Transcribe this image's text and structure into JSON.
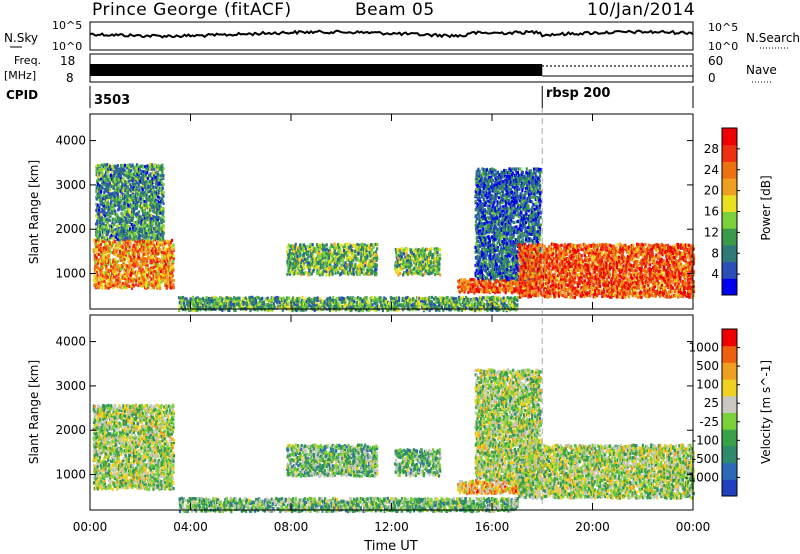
{
  "header": {
    "station": "Prince George (fitACF)",
    "beam": "Beam 05",
    "date": "10/Jan/2014"
  },
  "noise_panel": {
    "left_label": "N.Sky",
    "right_label": "N.Search",
    "left_ticks": [
      "10^5",
      "10^0"
    ],
    "right_ticks": [
      "10^5",
      "10^0"
    ]
  },
  "freq_panel": {
    "left_label_1": "Freq.",
    "left_label_2": "[MHz]",
    "left_ticks": [
      "18",
      "8"
    ],
    "right_label": "Nave",
    "right_ticks": [
      "60",
      "0"
    ]
  },
  "cpid_panel": {
    "label": "CPID",
    "segments": [
      {
        "start_h": 0,
        "end_h": 18.0,
        "name": "3503"
      },
      {
        "start_h": 18.0,
        "end_h": 24,
        "name": "rbsp 200"
      }
    ]
  },
  "x_axis": {
    "label": "Time UT",
    "ticks": [
      "00:00",
      "04:00",
      "08:00",
      "12:00",
      "16:00",
      "20:00",
      "00:00"
    ],
    "tick_hours": [
      0,
      4,
      8,
      12,
      16,
      20,
      24
    ],
    "range_h": [
      0,
      24
    ]
  },
  "chart_data": [
    {
      "type": "heatmap",
      "panel": "power",
      "ylabel": "Slant Range [km]",
      "yticks": [
        1000,
        2000,
        3000,
        4000
      ],
      "ylim": [
        200,
        4600
      ],
      "xlim": [
        0,
        24
      ],
      "xlabel": "",
      "colorbar": {
        "label": "Power [dB]",
        "ticks": [
          "4",
          "8",
          "12",
          "16",
          "20",
          "24",
          "28"
        ],
        "colors": [
          "#0000ee",
          "#2a4fb8",
          "#2e7a7a",
          "#3a9a4a",
          "#7ad13a",
          "#e8e020",
          "#f0a020",
          "#ee7010",
          "#ee3010",
          "#ee0000"
        ]
      },
      "echo_regions": [
        {
          "t0": 0.1,
          "t1": 3.3,
          "r0": 700,
          "r1": 1800,
          "level": 0.7
        },
        {
          "t0": 0.2,
          "t1": 2.9,
          "r0": 1800,
          "r1": 3500,
          "level": 0.3
        },
        {
          "t0": 7.8,
          "t1": 11.4,
          "r0": 1000,
          "r1": 1700,
          "level": 0.4
        },
        {
          "t0": 12.1,
          "t1": 13.9,
          "r0": 1000,
          "r1": 1600,
          "level": 0.4
        },
        {
          "t0": 14.6,
          "t1": 17.6,
          "r0": 600,
          "r1": 900,
          "level": 0.8
        },
        {
          "t0": 15.3,
          "t1": 17.9,
          "r0": 900,
          "r1": 3400,
          "level": 0.2
        },
        {
          "t0": 17.0,
          "t1": 24.0,
          "r0": 500,
          "r1": 1700,
          "level": 0.8
        },
        {
          "t0": 3.5,
          "t1": 17.0,
          "r0": 200,
          "r1": 500,
          "level": 0.35
        }
      ]
    },
    {
      "type": "heatmap",
      "panel": "velocity",
      "ylabel": "Slant Range [km]",
      "yticks": [
        1000,
        2000,
        3000,
        4000
      ],
      "ylim": [
        200,
        4600
      ],
      "xlim": [
        0,
        24
      ],
      "xlabel": "Time UT",
      "colorbar": {
        "label": "Velocity [m s^-1]",
        "ticks": [
          "1000",
          "500",
          "100",
          "25",
          "-25",
          "-100",
          "-500",
          "-1000"
        ],
        "colors": [
          "#2040c0",
          "#2a6ab8",
          "#2e8a6a",
          "#3aa04a",
          "#7ad13a",
          "#c8c8c0",
          "#f0d020",
          "#f0a020",
          "#ee6010",
          "#ee0000"
        ]
      },
      "echo_regions": [
        {
          "t0": 0.1,
          "t1": 3.3,
          "r0": 700,
          "r1": 2600,
          "level": 0.5
        },
        {
          "t0": 7.8,
          "t1": 11.4,
          "r0": 1000,
          "r1": 1700,
          "level": 0.4
        },
        {
          "t0": 12.1,
          "t1": 13.9,
          "r0": 1000,
          "r1": 1600,
          "level": 0.4
        },
        {
          "t0": 14.6,
          "t1": 17.6,
          "r0": 600,
          "r1": 900,
          "level": 0.7
        },
        {
          "t0": 15.3,
          "t1": 17.9,
          "r0": 900,
          "r1": 3400,
          "level": 0.5
        },
        {
          "t0": 17.0,
          "t1": 24.0,
          "r0": 500,
          "r1": 1700,
          "level": 0.5
        },
        {
          "t0": 3.5,
          "t1": 17.0,
          "r0": 200,
          "r1": 500,
          "level": 0.4
        }
      ]
    }
  ]
}
